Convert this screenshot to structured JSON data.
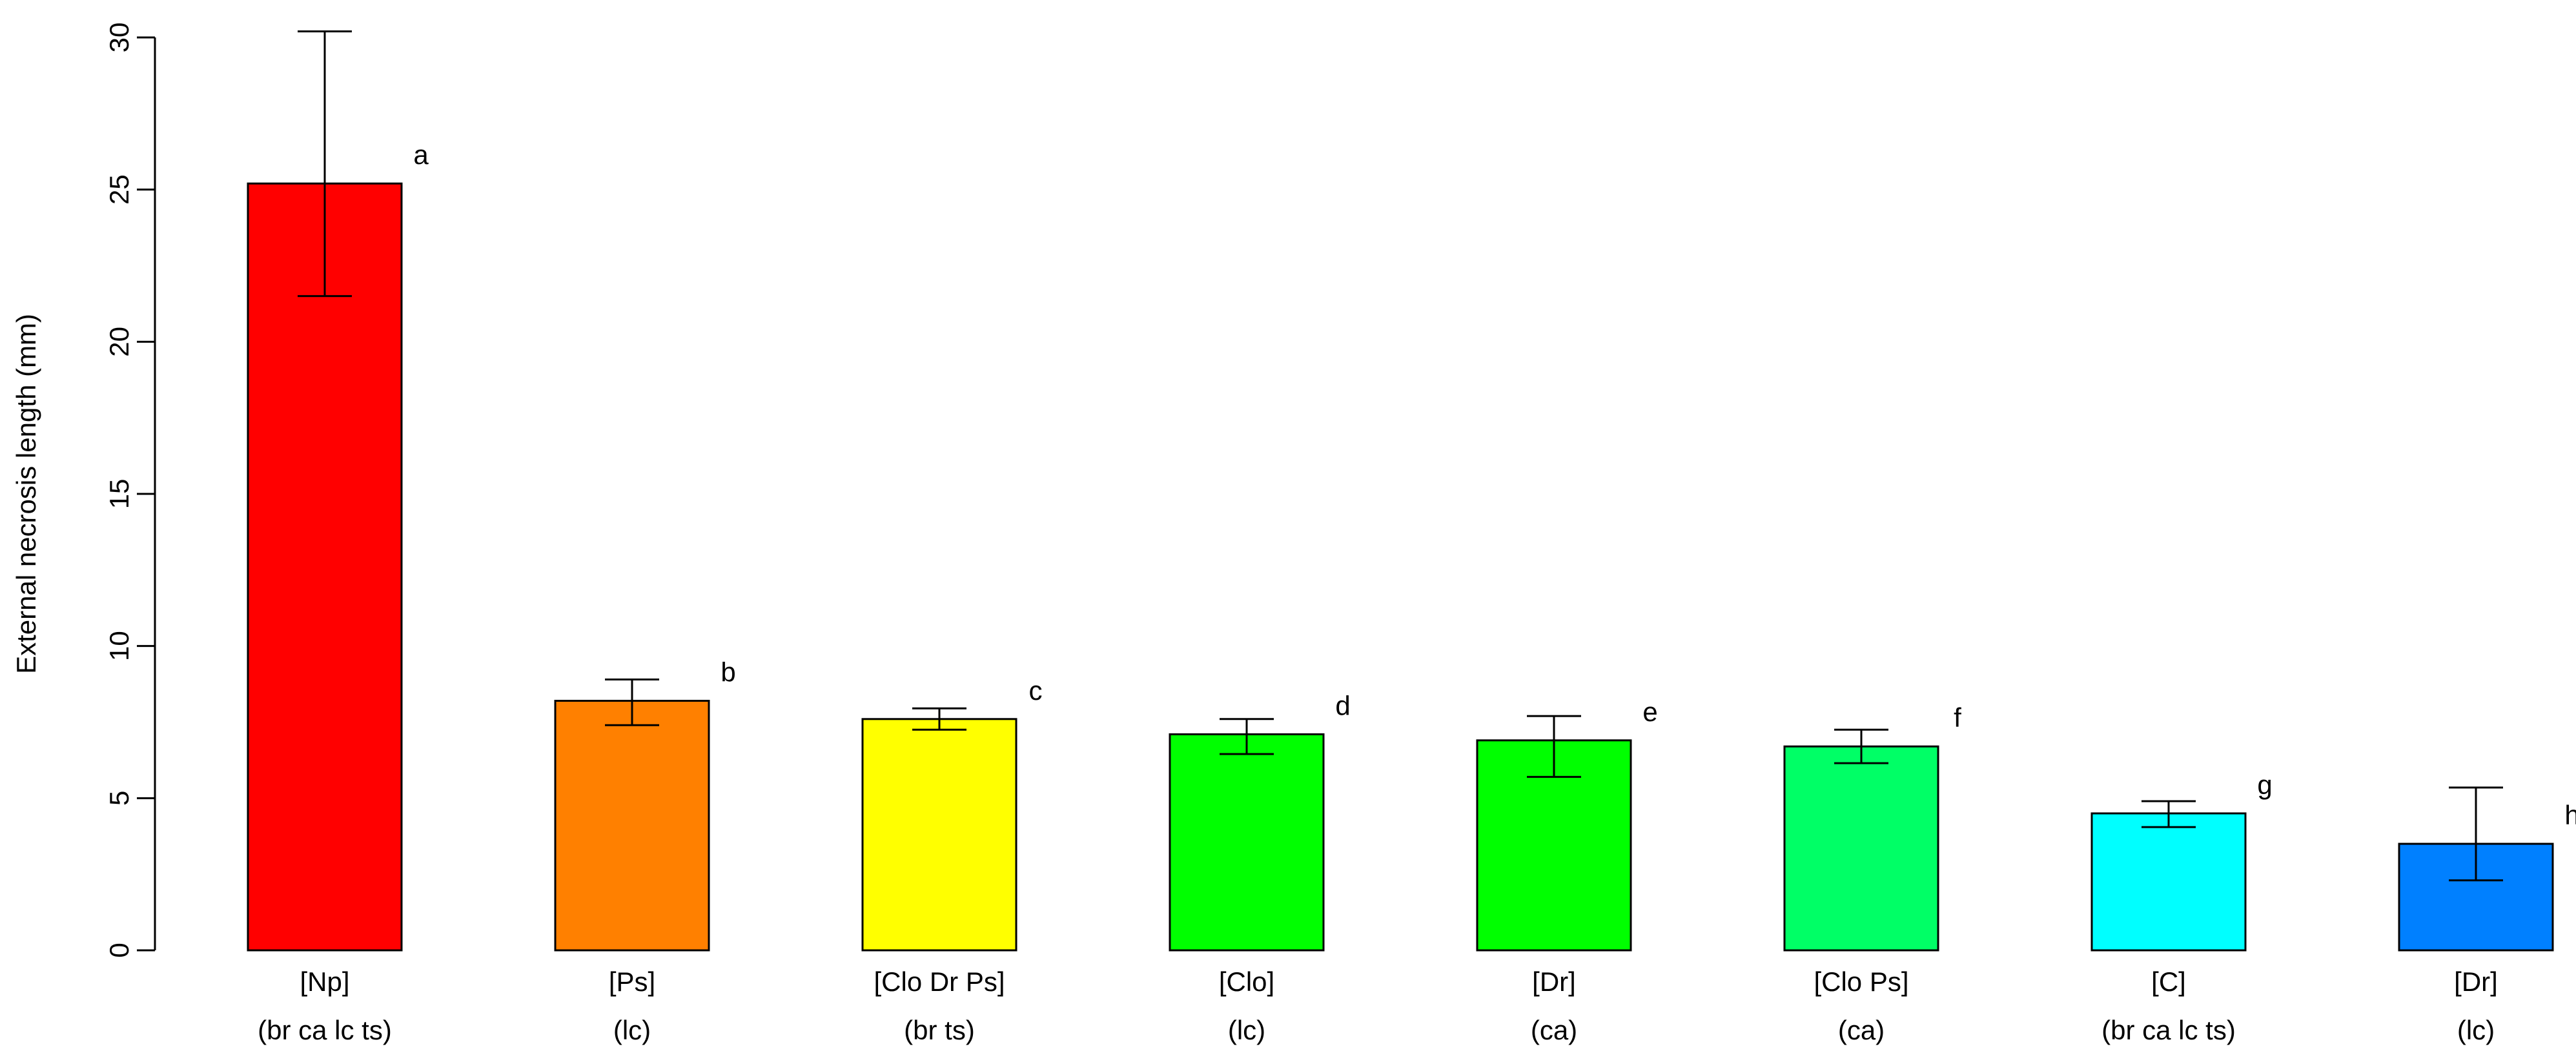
{
  "chart_data": {
    "type": "bar",
    "title": "",
    "ylabel": "External necrosis length (mm)",
    "xlabel": "",
    "ylim": [
      0,
      30
    ],
    "yticks": [
      0,
      5,
      10,
      15,
      20,
      25,
      30
    ],
    "categories": [
      {
        "line1": "[Np]",
        "line2": "(br ca lc ts)"
      },
      {
        "line1": "[Ps]",
        "line2": "(lc)"
      },
      {
        "line1": "[Clo Dr Ps]",
        "line2": "(br ts)"
      },
      {
        "line1": "[Clo]",
        "line2": "(lc)"
      },
      {
        "line1": "[Dr]",
        "line2": "(ca)"
      },
      {
        "line1": "[Clo Ps]",
        "line2": "(ca)"
      },
      {
        "line1": "[C]",
        "line2": "(br ca lc ts)"
      },
      {
        "line1": "[Dr]",
        "line2": "(lc)"
      }
    ],
    "values": [
      25.2,
      8.2,
      7.6,
      7.1,
      6.9,
      6.7,
      4.5,
      3.5
    ],
    "error_lower": [
      21.5,
      7.4,
      7.25,
      6.45,
      5.7,
      6.15,
      4.05,
      2.3
    ],
    "error_upper": [
      30.2,
      8.9,
      7.95,
      7.6,
      7.7,
      7.25,
      4.9,
      5.35
    ],
    "letters": [
      "a",
      "b",
      "c",
      "d",
      "e",
      "f",
      "g",
      "h"
    ],
    "colors": [
      "#ff0000",
      "#ff8000",
      "#ffff00",
      "#00ff00",
      "#00ff00",
      "#00ff66",
      "#00ffff",
      "#0080ff"
    ],
    "grid": false,
    "legend": "none"
  }
}
